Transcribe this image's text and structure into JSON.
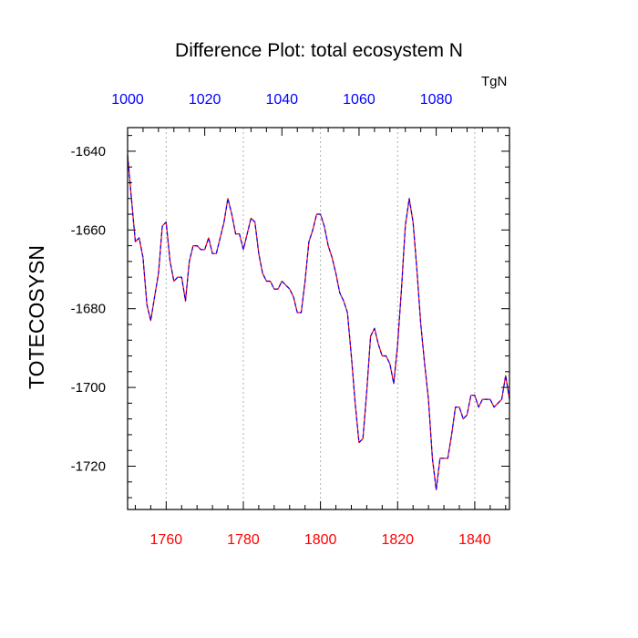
{
  "chart_data": {
    "type": "line",
    "title": "Difference Plot: total ecosystem N",
    "units_label": "TgN",
    "ylabel": "TOTECOSYSN",
    "xlabel": "",
    "xlim": [
      1750,
      1849
    ],
    "ylim": [
      -1731,
      -1634
    ],
    "x_ticks": [
      1760,
      1780,
      1800,
      1820,
      1840
    ],
    "y_ticks": [
      -1640,
      -1660,
      -1680,
      -1700,
      -1720
    ],
    "top_axis_ticks": [
      1000,
      1020,
      1040,
      1060,
      1080
    ],
    "top_axis_range": [
      1000,
      1099
    ],
    "grid": "vertical dotted lines at bottom x ticks",
    "bottom_tick_color": "#ff0000",
    "top_tick_color": "#0000ff",
    "series": [
      {
        "line_colors": [
          "#ff0000",
          "#0000ff"
        ],
        "dashed": true,
        "x": [
          1750,
          1751,
          1752,
          1753,
          1754,
          1755,
          1756,
          1757,
          1758,
          1759,
          1760,
          1761,
          1762,
          1763,
          1764,
          1765,
          1766,
          1767,
          1768,
          1769,
          1770,
          1771,
          1772,
          1773,
          1774,
          1775,
          1776,
          1777,
          1778,
          1779,
          1780,
          1781,
          1782,
          1783,
          1784,
          1785,
          1786,
          1787,
          1788,
          1789,
          1790,
          1791,
          1792,
          1793,
          1794,
          1795,
          1796,
          1797,
          1798,
          1799,
          1800,
          1801,
          1802,
          1803,
          1804,
          1805,
          1806,
          1807,
          1808,
          1809,
          1810,
          1811,
          1812,
          1813,
          1814,
          1815,
          1816,
          1817,
          1818,
          1819,
          1820,
          1821,
          1822,
          1823,
          1824,
          1825,
          1826,
          1827,
          1828,
          1829,
          1830,
          1831,
          1832,
          1833,
          1834,
          1835,
          1836,
          1837,
          1838,
          1839,
          1840,
          1841,
          1842,
          1843,
          1844,
          1845,
          1846,
          1847,
          1848,
          1849
        ],
        "values": [
          -1641,
          -1652,
          -1663,
          -1662,
          -1667,
          -1679,
          -1683,
          -1677,
          -1671,
          -1659,
          -1658,
          -1668,
          -1673,
          -1672,
          -1672,
          -1678,
          -1668,
          -1664,
          -1664,
          -1665,
          -1665,
          -1662,
          -1666,
          -1666,
          -1662,
          -1658,
          -1652,
          -1656,
          -1661,
          -1661,
          -1665,
          -1661,
          -1657,
          -1658,
          -1666,
          -1671,
          -1673,
          -1673,
          -1675,
          -1675,
          -1673,
          -1674,
          -1675,
          -1677,
          -1681,
          -1681,
          -1673,
          -1663,
          -1660,
          -1656,
          -1656,
          -1659,
          -1664,
          -1667,
          -1671,
          -1676,
          -1678,
          -1681,
          -1692,
          -1704,
          -1714,
          -1713,
          -1701,
          -1687,
          -1685,
          -1689,
          -1692,
          -1692,
          -1694,
          -1699,
          -1689,
          -1675,
          -1659,
          -1652,
          -1658,
          -1670,
          -1684,
          -1694,
          -1703,
          -1718,
          -1726,
          -1718,
          -1718,
          -1718,
          -1712,
          -1705,
          -1705,
          -1708,
          -1707,
          -1702,
          -1702,
          -1705,
          -1703,
          -1703,
          -1703,
          -1705,
          -1704,
          -1703,
          -1697,
          -1703
        ]
      }
    ]
  }
}
